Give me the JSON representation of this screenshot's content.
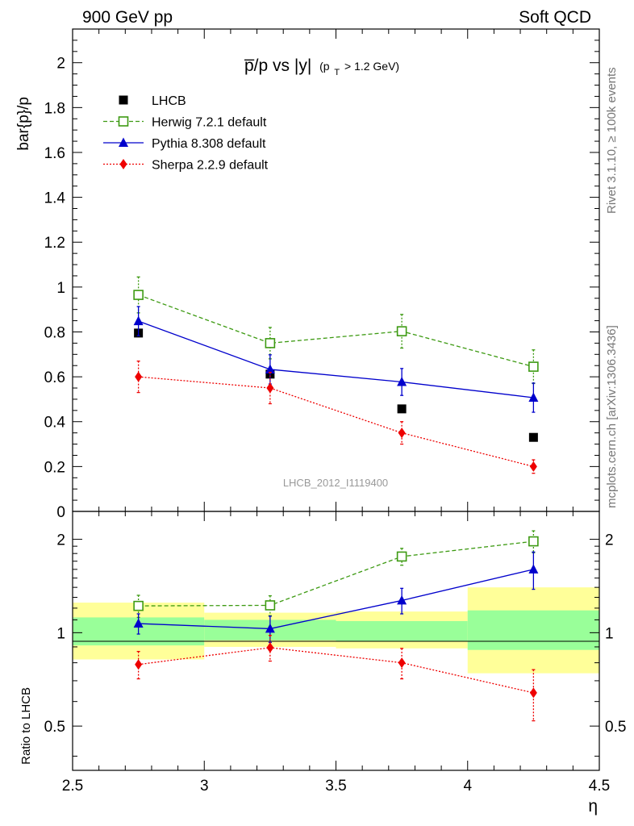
{
  "header": {
    "left_label": "900 GeV pp",
    "right_label": "Soft QCD"
  },
  "side_labels": {
    "rivet": "Rivet 3.1.10, ≥ 100k events",
    "source": "mcplots.cern.ch [arXiv:1306.3436]"
  },
  "watermark": "LHCB_2012_I1119400",
  "chart_data": [
    {
      "type": "line",
      "panel": "main",
      "title_main": "p̅/p vs |y|",
      "title_cut": "(p",
      "title_cut_sub": "T",
      "title_cut_rest": " > 1.2 GeV)",
      "xlabel": "η",
      "ylabel": "bar{p}/p",
      "xlim": [
        2.5,
        4.5
      ],
      "ylim": [
        0,
        2.15
      ],
      "yticks": [
        0,
        0.2,
        0.4,
        0.6,
        0.8,
        1,
        1.2,
        1.4,
        1.6,
        1.8,
        2
      ],
      "ytick_labels": [
        "0",
        "0.2",
        "0.4",
        "0.6",
        "0.8",
        "1",
        "1.2",
        "1.4",
        "1.6",
        "1.8",
        "2"
      ],
      "legend_position": "top-left",
      "series": [
        {
          "name": "LHCB",
          "style": "data",
          "color": "#000000",
          "x": [
            2.75,
            3.25,
            3.75,
            4.25
          ],
          "values": [
            0.795,
            0.612,
            0.457,
            0.33
          ],
          "err": [
            0.0,
            0.0,
            0.0,
            0.0
          ]
        },
        {
          "name": "Herwig 7.2.1 default",
          "style": "herwig",
          "color": "#3d9a12",
          "x": [
            2.75,
            3.25,
            3.75,
            4.25
          ],
          "values": [
            0.965,
            0.75,
            0.803,
            0.645
          ],
          "err": [
            0.08,
            0.07,
            0.075,
            0.075
          ]
        },
        {
          "name": "Pythia 8.308 default",
          "style": "pythia",
          "color": "#0000cc",
          "x": [
            2.75,
            3.25,
            3.75,
            4.25
          ],
          "values": [
            0.848,
            0.633,
            0.577,
            0.507
          ],
          "err": [
            0.065,
            0.065,
            0.06,
            0.065
          ]
        },
        {
          "name": "Sherpa 2.2.9 default",
          "style": "sherpa",
          "color": "#ee0000",
          "x": [
            2.75,
            3.25,
            3.75,
            4.25
          ],
          "values": [
            0.6,
            0.55,
            0.35,
            0.2
          ],
          "err": [
            0.07,
            0.07,
            0.05,
            0.03
          ]
        }
      ]
    },
    {
      "type": "line",
      "panel": "ratio",
      "xlabel": "η",
      "ylabel": "Ratio to LHCB",
      "xlim": [
        2.5,
        4.5
      ],
      "ylim": [
        0.36,
        2.46
      ],
      "yscale": "log",
      "yticks": [
        0.5,
        1,
        2
      ],
      "ytick_labels": [
        "0.5",
        "1",
        "2"
      ],
      "xticks": [
        2.5,
        3,
        3.5,
        4,
        4.5
      ],
      "xtick_labels": [
        "2.5",
        "3",
        "3.5",
        "4",
        "4.5"
      ],
      "bands": {
        "bin_edges": [
          2.5,
          3.0,
          3.5,
          4.0,
          4.5
        ],
        "stat_low": [
          0.91,
          0.945,
          0.94,
          0.88
        ],
        "stat_high": [
          1.12,
          1.1,
          1.09,
          1.18
        ],
        "total_low": [
          0.82,
          0.9,
          0.89,
          0.74
        ],
        "total_high": [
          1.25,
          1.16,
          1.17,
          1.4
        ],
        "stat_color": "#99ff99",
        "total_color": "#ffff99"
      },
      "series": [
        {
          "name": "Herwig 7.2.1 default",
          "style": "herwig",
          "color": "#3d9a12",
          "x": [
            2.75,
            3.25,
            3.75,
            4.25
          ],
          "values": [
            1.22,
            1.225,
            1.76,
            1.97
          ],
          "err": [
            0.1,
            0.09,
            0.11,
            0.16
          ]
        },
        {
          "name": "Pythia 8.308 default",
          "style": "pythia",
          "color": "#0000cc",
          "x": [
            2.75,
            3.25,
            3.75,
            4.25
          ],
          "values": [
            1.07,
            1.03,
            1.27,
            1.6
          ],
          "err": [
            0.08,
            0.1,
            0.12,
            0.22
          ]
        },
        {
          "name": "Sherpa 2.2.9 default",
          "style": "sherpa",
          "color": "#ee0000",
          "x": [
            2.75,
            3.25,
            3.75,
            4.25
          ],
          "values": [
            0.79,
            0.895,
            0.8,
            0.64
          ],
          "err": [
            0.08,
            0.085,
            0.09,
            0.12
          ]
        }
      ]
    }
  ]
}
